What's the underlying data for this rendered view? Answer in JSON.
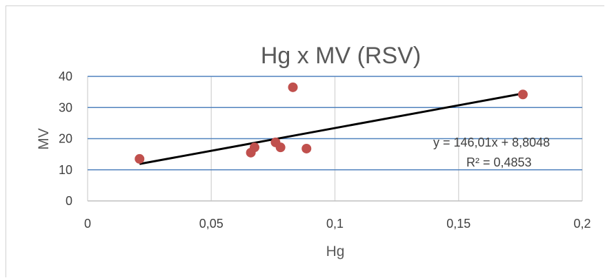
{
  "chart_data": {
    "type": "scatter",
    "title": "Hg x MV (RSV)",
    "xlabel": "Hg",
    "ylabel": "MV",
    "xlim": [
      0,
      0.2
    ],
    "ylim": [
      0,
      40
    ],
    "x_ticks": [
      "0",
      "0,05",
      "0,1",
      "0,15",
      "0,2"
    ],
    "x_tick_values": [
      0,
      0.05,
      0.1,
      0.15,
      0.2
    ],
    "y_ticks": [
      "0",
      "10",
      "20",
      "30",
      "40"
    ],
    "y_tick_values": [
      0,
      10,
      20,
      30,
      40
    ],
    "grid": true,
    "colors": {
      "points": "#c0504d",
      "trendline": "#000000",
      "hgrid": "#4f81bd",
      "vgrid": "#d9d9d9"
    },
    "points": [
      {
        "x": 0.021,
        "y": 13.5
      },
      {
        "x": 0.066,
        "y": 15.5
      },
      {
        "x": 0.0675,
        "y": 17.2
      },
      {
        "x": 0.076,
        "y": 18.8
      },
      {
        "x": 0.078,
        "y": 17.2
      },
      {
        "x": 0.083,
        "y": 36.5
      },
      {
        "x": 0.0885,
        "y": 16.8
      },
      {
        "x": 0.176,
        "y": 34.2
      }
    ],
    "trendline": {
      "type": "linear",
      "slope": 146.01,
      "intercept": 8.8048,
      "x_range": [
        0.021,
        0.176
      ],
      "equation_label": "y = 146,01x + 8,8048",
      "r2_label": "R² = 0,4853"
    }
  }
}
